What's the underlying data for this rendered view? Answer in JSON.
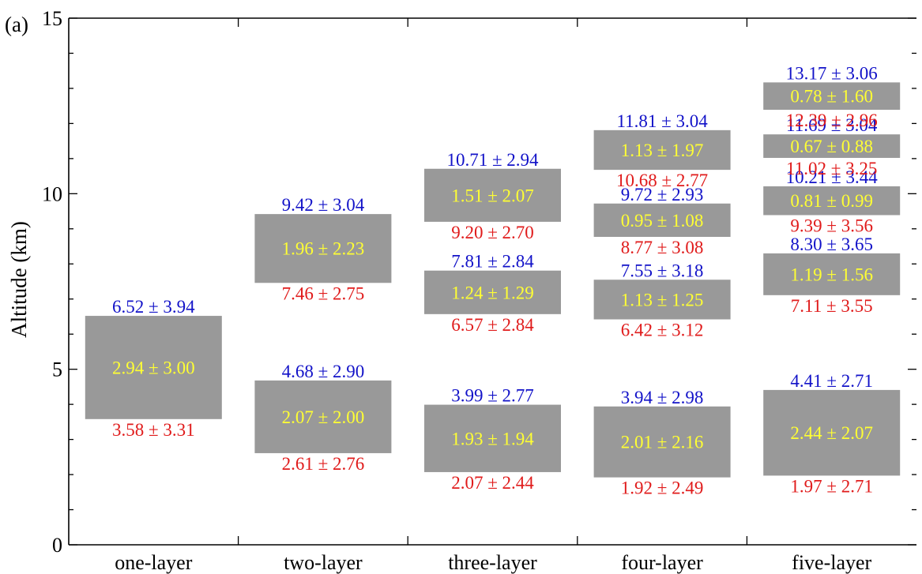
{
  "panel_label": "(a)",
  "chart_data": {
    "type": "bar",
    "subtype": "floating-range",
    "categories": [
      "one-layer",
      "two-layer",
      "three-layer",
      "four-layer",
      "five-layer"
    ],
    "ylabel": "Altitude (km)",
    "xlabel": "",
    "ylim": [
      0,
      15
    ],
    "yticks": [
      0,
      5,
      10,
      15
    ],
    "grid": false,
    "colors": {
      "box": "#999999",
      "top_label": "#1212c8",
      "thickness_label": "#ffff33",
      "base_label": "#e01b1b",
      "axis": "#000000"
    },
    "layers": [
      {
        "category": "one-layer",
        "base": 3.58,
        "base_sd": 3.31,
        "top": 6.52,
        "top_sd": 3.94,
        "thickness": 2.94,
        "thickness_sd": 3.0,
        "base_label": "3.58 ± 3.31",
        "top_label": "6.52 ± 3.94",
        "thickness_label": "2.94 ± 3.00"
      },
      {
        "category": "two-layer",
        "base": 2.61,
        "base_sd": 2.76,
        "top": 4.68,
        "top_sd": 2.9,
        "thickness": 2.07,
        "thickness_sd": 2.0,
        "base_label": "2.61 ± 2.76",
        "top_label": "4.68 ± 2.90",
        "thickness_label": "2.07 ± 2.00"
      },
      {
        "category": "two-layer",
        "base": 7.46,
        "base_sd": 2.75,
        "top": 9.42,
        "top_sd": 3.04,
        "thickness": 1.96,
        "thickness_sd": 2.23,
        "base_label": "7.46 ± 2.75",
        "top_label": "9.42 ± 3.04",
        "thickness_label": "1.96 ± 2.23"
      },
      {
        "category": "three-layer",
        "base": 2.07,
        "base_sd": 2.44,
        "top": 3.99,
        "top_sd": 2.77,
        "thickness": 1.93,
        "thickness_sd": 1.94,
        "base_label": "2.07 ± 2.44",
        "top_label": "3.99 ± 2.77",
        "thickness_label": "1.93 ± 1.94"
      },
      {
        "category": "three-layer",
        "base": 6.57,
        "base_sd": 2.84,
        "top": 7.81,
        "top_sd": 2.84,
        "thickness": 1.24,
        "thickness_sd": 1.29,
        "base_label": "6.57 ± 2.84",
        "top_label": "7.81 ± 2.84",
        "thickness_label": "1.24 ± 1.29"
      },
      {
        "category": "three-layer",
        "base": 9.2,
        "base_sd": 2.7,
        "top": 10.71,
        "top_sd": 2.94,
        "thickness": 1.51,
        "thickness_sd": 2.07,
        "base_label": "9.20 ± 2.70",
        "top_label": "10.71 ± 2.94",
        "thickness_label": "1.51 ± 2.07"
      },
      {
        "category": "four-layer",
        "base": 1.92,
        "base_sd": 2.49,
        "top": 3.94,
        "top_sd": 2.98,
        "thickness": 2.01,
        "thickness_sd": 2.16,
        "base_label": "1.92 ± 2.49",
        "top_label": "3.94 ± 2.98",
        "thickness_label": "2.01 ± 2.16"
      },
      {
        "category": "four-layer",
        "base": 6.42,
        "base_sd": 3.12,
        "top": 7.55,
        "top_sd": 3.18,
        "thickness": 1.13,
        "thickness_sd": 1.25,
        "base_label": "6.42 ± 3.12",
        "top_label": "7.55 ± 3.18",
        "thickness_label": "1.13 ± 1.25"
      },
      {
        "category": "four-layer",
        "base": 8.77,
        "base_sd": 3.08,
        "top": 9.72,
        "top_sd": 2.93,
        "thickness": 0.95,
        "thickness_sd": 1.08,
        "base_label": "8.77 ± 3.08",
        "top_label": "9.72 ± 2.93",
        "thickness_label": "0.95 ± 1.08"
      },
      {
        "category": "four-layer",
        "base": 10.68,
        "base_sd": 2.77,
        "top": 11.81,
        "top_sd": 3.04,
        "thickness": 1.13,
        "thickness_sd": 1.97,
        "base_label": "10.68 ± 2.77",
        "top_label": "11.81 ± 3.04",
        "thickness_label": "1.13 ± 1.97"
      },
      {
        "category": "five-layer",
        "base": 1.97,
        "base_sd": 2.71,
        "top": 4.41,
        "top_sd": 2.71,
        "thickness": 2.44,
        "thickness_sd": 2.07,
        "base_label": "1.97 ± 2.71",
        "top_label": "4.41 ± 2.71",
        "thickness_label": "2.44 ± 2.07"
      },
      {
        "category": "five-layer",
        "base": 7.11,
        "base_sd": 3.55,
        "top": 8.3,
        "top_sd": 3.65,
        "thickness": 1.19,
        "thickness_sd": 1.56,
        "base_label": "7.11 ± 3.55",
        "top_label": "8.30 ± 3.65",
        "thickness_label": "1.19 ± 1.56"
      },
      {
        "category": "five-layer",
        "base": 9.39,
        "base_sd": 3.56,
        "top": 10.21,
        "top_sd": 3.44,
        "thickness": 0.81,
        "thickness_sd": 0.99,
        "base_label": "9.39 ± 3.56",
        "top_label": "10.21 ± 3.44",
        "thickness_label": "0.81 ± 0.99"
      },
      {
        "category": "five-layer",
        "base": 11.02,
        "base_sd": 3.25,
        "top": 11.69,
        "top_sd": 3.04,
        "thickness": 0.67,
        "thickness_sd": 0.88,
        "base_label": "11.02 ± 3.25",
        "top_label": "11.69 ± 3.04",
        "thickness_label": "0.67 ± 0.88"
      },
      {
        "category": "five-layer",
        "base": 12.39,
        "base_sd": 2.96,
        "top": 13.17,
        "top_sd": 3.06,
        "thickness": 0.78,
        "thickness_sd": 1.6,
        "base_label": "12.39 ± 2.96",
        "top_label": "13.17 ± 3.06",
        "thickness_label": "0.78 ± 1.60"
      }
    ]
  }
}
